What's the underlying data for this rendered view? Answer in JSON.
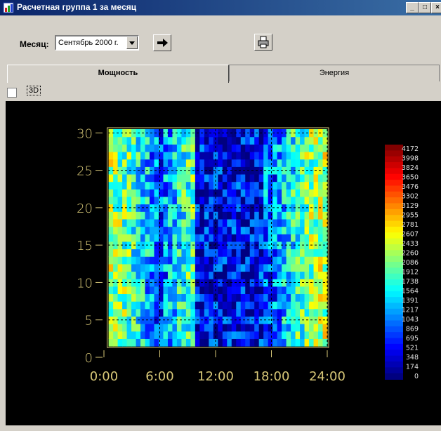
{
  "window": {
    "title": "Расчетная группа 1 за месяц"
  },
  "toolbar": {
    "month_label": "Месяц:",
    "month_value": "Сентябрь 2000 г."
  },
  "tabs": [
    {
      "label": "Мощность",
      "active": true
    },
    {
      "label": "Энергия",
      "active": false
    }
  ],
  "options": {
    "label_3d": "3D",
    "checked_3d": false
  },
  "colors": {
    "axis": "#d8c878",
    "background": "#000000"
  },
  "chart_data": {
    "type": "heatmap",
    "x_ticks": [
      "0:00",
      "6:00",
      "12:00",
      "18:00",
      "24:00"
    ],
    "y_ticks": [
      "0",
      "5",
      "10",
      "15",
      "20",
      "25",
      "30"
    ],
    "xlim": [
      0,
      24
    ],
    "ylim": [
      0,
      30
    ],
    "data_extent": {
      "x": [
        0.5,
        24
      ],
      "y": [
        1.5,
        30.5
      ]
    },
    "grid": true,
    "colorbar_labels": [
      "4172",
      "3998",
      "3824",
      "3650",
      "3476",
      "3302",
      "3129",
      "2955",
      "2781",
      "2607",
      "2433",
      "2260",
      "2086",
      "1912",
      "1738",
      "1564",
      "1391",
      "1217",
      "1043",
      "869",
      "695",
      "521",
      "348",
      "174",
      "0"
    ],
    "colorbar_range": [
      0,
      4172
    ]
  }
}
